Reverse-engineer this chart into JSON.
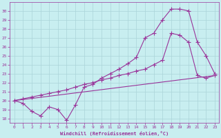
{
  "xlabel": "Windchill (Refroidissement éolien,°C)",
  "bg_color": "#c8eef0",
  "grid_color": "#aad4d8",
  "line_color": "#993399",
  "xlim": [
    -0.5,
    23.5
  ],
  "ylim": [
    17.5,
    31.0
  ],
  "xticks": [
    0,
    1,
    2,
    3,
    4,
    5,
    6,
    7,
    8,
    9,
    10,
    11,
    12,
    13,
    14,
    15,
    16,
    17,
    18,
    19,
    20,
    21,
    22,
    23
  ],
  "yticks": [
    18,
    19,
    20,
    21,
    22,
    23,
    24,
    25,
    26,
    27,
    28,
    29,
    30
  ],
  "line1_x": [
    0,
    1,
    2,
    3,
    4,
    5,
    6,
    7,
    8,
    9,
    10,
    11,
    12,
    13,
    14,
    15,
    16,
    17,
    18,
    19,
    20,
    21,
    22,
    23
  ],
  "line1_y": [
    20.0,
    19.7,
    18.8,
    18.3,
    19.3,
    19.0,
    17.8,
    19.5,
    21.5,
    21.8,
    22.5,
    23.0,
    23.5,
    24.1,
    24.8,
    27.0,
    27.5,
    29.0,
    30.2,
    30.2,
    30.0,
    26.5,
    25.0,
    23.0
  ],
  "line2_x": [
    0,
    1,
    2,
    3,
    4,
    5,
    6,
    7,
    8,
    9,
    10,
    11,
    12,
    13,
    14,
    15,
    16,
    17,
    18,
    19,
    20,
    21,
    22,
    23
  ],
  "line2_y": [
    20.0,
    20.2,
    20.4,
    20.6,
    20.8,
    21.0,
    21.2,
    21.5,
    21.8,
    22.0,
    22.3,
    22.5,
    22.8,
    23.0,
    23.3,
    23.5,
    24.0,
    24.5,
    27.5,
    27.3,
    26.5,
    22.8,
    22.5,
    22.8
  ],
  "line3_x": [
    0,
    23
  ],
  "line3_y": [
    20.0,
    22.8
  ]
}
